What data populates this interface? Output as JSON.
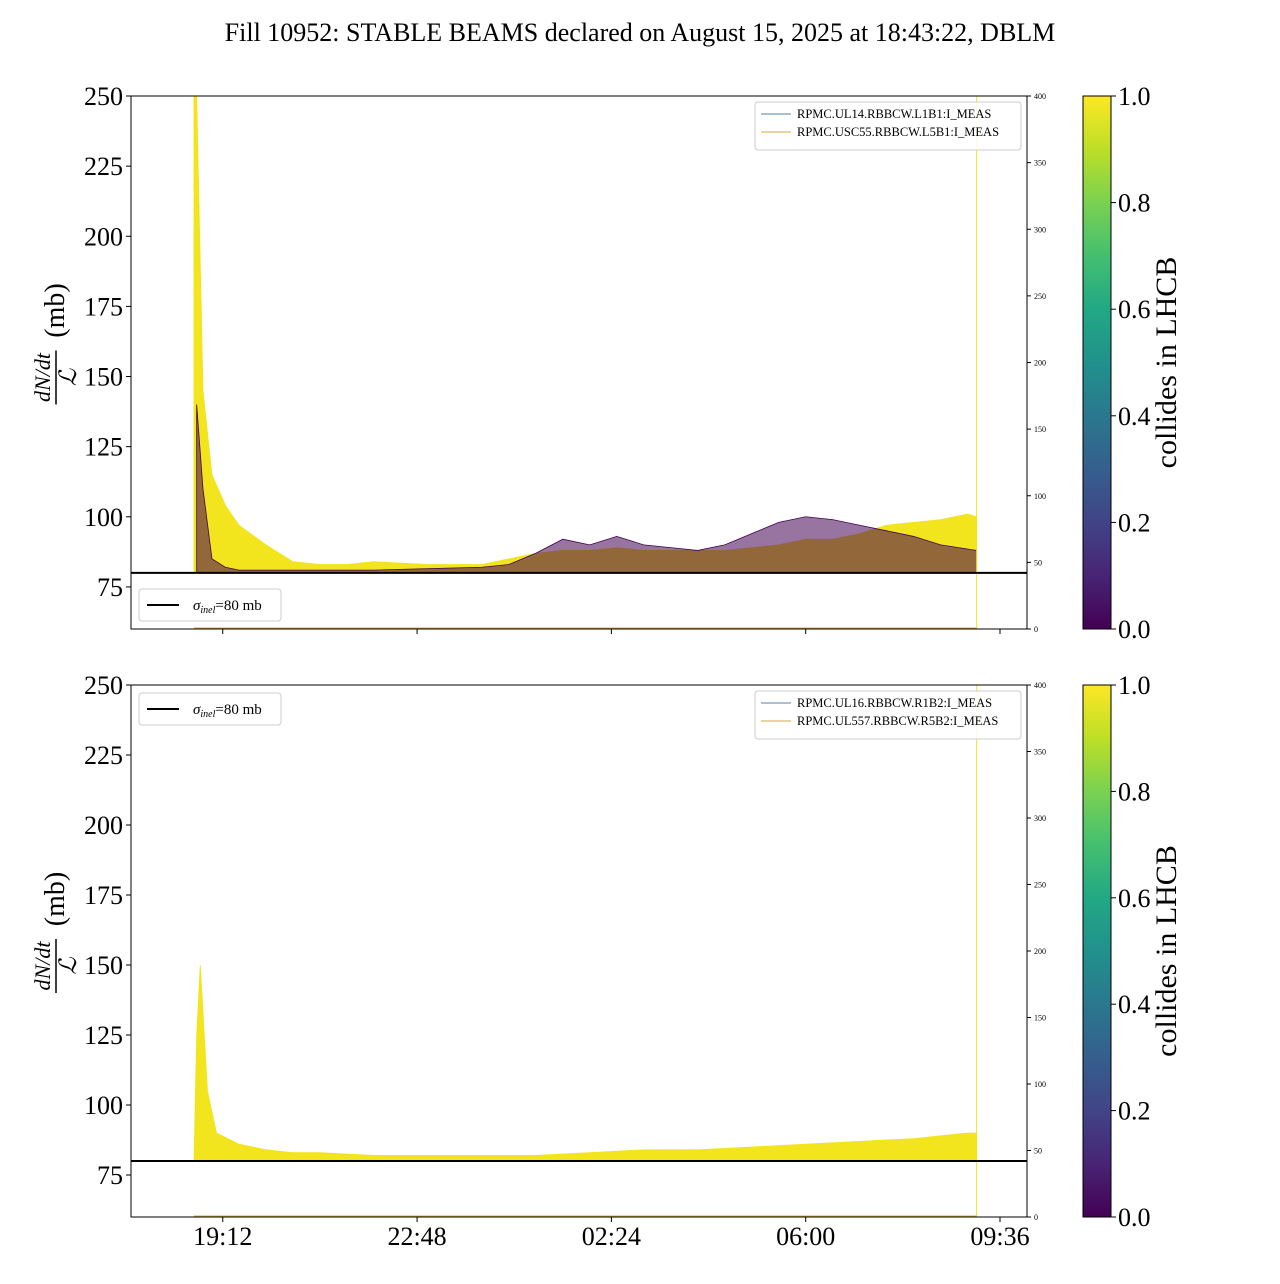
{
  "figure": {
    "title": "Fill 10952: STABLE BEAMS declared on August 15, 2025 at 18:43:22, DBLM"
  },
  "colors": {
    "collides": "#f2e41d",
    "noncollide": "#440154",
    "legend_line_1": "#5b7fa6",
    "legend_line_2": "#d9a441",
    "reference_line": "#000000"
  },
  "chart_data": [
    {
      "type": "line",
      "panel": "top",
      "ylabel_num": "dN/dt",
      "ylabel_den": "ℒ",
      "ylabel_unit": "(mb)",
      "ylim": [
        60,
        250
      ],
      "yticks": [
        75,
        100,
        125,
        150,
        175,
        200,
        225,
        250
      ],
      "y2lim": [
        0,
        400
      ],
      "y2ticks": [
        0,
        50,
        100,
        150,
        200,
        250,
        300,
        350,
        400
      ],
      "xlim_hours": [
        17.5,
        10.1
      ],
      "xticks": [
        "19:12",
        "22:48",
        "02:24",
        "06:00",
        "09:36"
      ],
      "reference": {
        "value": 80,
        "label_sym": "σ",
        "label_sub": "inel",
        "label_rest": "=80 mb"
      },
      "series_legend": [
        "RPMC.UL14.RBBCW.L1B1:I_MEAS",
        "RPMC.USC55.RBBCW.L5B1:I_MEAS"
      ],
      "colorbar": {
        "label": "collides in LHCB",
        "ticks": [
          "0.0",
          "0.2",
          "0.4",
          "0.6",
          "0.8",
          "1.0"
        ]
      },
      "bands": {
        "collides": {
          "x": [
            "18:40",
            "18:43",
            "18:50",
            "19:00",
            "19:15",
            "19:30",
            "20:00",
            "20:30",
            "21:00",
            "21:30",
            "22:00",
            "23:00",
            "24:00",
            "00:30",
            "01:00",
            "01:30",
            "02:00",
            "02:30",
            "03:00",
            "03:30",
            "04:00",
            "04:30",
            "05:00",
            "05:30",
            "06:00",
            "06:30",
            "07:00",
            "07:30",
            "08:00",
            "08:30",
            "09:00",
            "09:10"
          ],
          "low": [
            80,
            80,
            80,
            80,
            80,
            80,
            80,
            80,
            80,
            80,
            80,
            80,
            80,
            80,
            80,
            80,
            80,
            80,
            80,
            80,
            80,
            80,
            80,
            80,
            80,
            80,
            80,
            80,
            80,
            80,
            80,
            80
          ],
          "high": [
            250,
            250,
            145,
            115,
            104,
            97,
            90,
            84,
            83,
            83,
            84,
            83,
            83,
            85,
            87,
            88,
            88,
            89,
            88,
            88,
            88,
            88,
            89,
            90,
            92,
            92,
            94,
            97,
            98,
            99,
            101,
            100
          ]
        },
        "noncollide": {
          "x": [
            "18:43",
            "18:50",
            "19:00",
            "19:15",
            "19:30",
            "20:00",
            "22:00",
            "24:00",
            "00:30",
            "01:00",
            "01:30",
            "02:00",
            "02:30",
            "03:00",
            "03:30",
            "04:00",
            "04:30",
            "05:00",
            "05:30",
            "06:00",
            "06:30",
            "07:00",
            "07:30",
            "08:00",
            "08:30",
            "09:10"
          ],
          "low": [
            80,
            80,
            80,
            80,
            80,
            80,
            80,
            80,
            80,
            80,
            80,
            80,
            80,
            80,
            80,
            80,
            80,
            80,
            80,
            80,
            80,
            80,
            80,
            80,
            80,
            80
          ],
          "high": [
            140,
            110,
            85,
            82,
            81,
            81,
            81,
            82,
            83,
            87,
            92,
            90,
            93,
            90,
            89,
            88,
            90,
            94,
            98,
            100,
            99,
            97,
            95,
            93,
            90,
            88
          ]
        }
      }
    },
    {
      "type": "line",
      "panel": "bottom",
      "ylabel_num": "dN/dt",
      "ylabel_den": "ℒ",
      "ylabel_unit": "(mb)",
      "ylim": [
        60,
        250
      ],
      "yticks": [
        75,
        100,
        125,
        150,
        175,
        200,
        225,
        250
      ],
      "y2lim": [
        0,
        400
      ],
      "y2ticks": [
        0,
        50,
        100,
        150,
        200,
        250,
        300,
        350,
        400
      ],
      "xlim_hours": [
        17.5,
        10.1
      ],
      "xticks": [
        "19:12",
        "22:48",
        "02:24",
        "06:00",
        "09:36"
      ],
      "reference": {
        "value": 80,
        "label_sym": "σ",
        "label_sub": "inel",
        "label_rest": "=80 mb"
      },
      "series_legend": [
        "RPMC.UL16.RBBCW.R1B2:I_MEAS",
        "RPMC.UL557.RBBCW.R5B2:I_MEAS"
      ],
      "colorbar": {
        "label": "collides in LHCB",
        "ticks": [
          "0.0",
          "0.2",
          "0.4",
          "0.6",
          "0.8",
          "1.0"
        ]
      },
      "bands": {
        "collides": {
          "x": [
            "18:40",
            "18:43",
            "18:47",
            "18:55",
            "19:05",
            "19:30",
            "20:00",
            "20:30",
            "21:00",
            "22:00",
            "23:00",
            "24:00",
            "01:00",
            "02:00",
            "03:00",
            "04:00",
            "05:00",
            "06:00",
            "07:00",
            "08:00",
            "08:30",
            "09:00",
            "09:10"
          ],
          "low": [
            80,
            80,
            80,
            80,
            80,
            80,
            80,
            80,
            80,
            80,
            80,
            80,
            80,
            80,
            80,
            80,
            80,
            80,
            80,
            80,
            80,
            80,
            80
          ],
          "high": [
            80,
            125,
            150,
            105,
            90,
            86,
            84,
            83,
            83,
            82,
            82,
            82,
            82,
            83,
            84,
            84,
            85,
            86,
            87,
            88,
            89,
            90,
            90
          ]
        }
      }
    }
  ]
}
